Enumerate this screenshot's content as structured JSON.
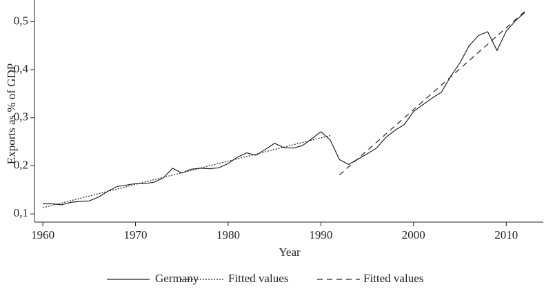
{
  "chart_data": {
    "type": "line",
    "x_label": "Year",
    "y_label": "Exports as % of GDP",
    "xlim": [
      1959.1,
      2014
    ],
    "ylim": [
      0.083,
      0.545
    ],
    "xticks": [
      1960,
      1970,
      1980,
      1990,
      2000,
      2010
    ],
    "yticks": [
      {
        "value": 0.1,
        "label": "0,1"
      },
      {
        "value": 0.2,
        "label": "0,2"
      },
      {
        "value": 0.3,
        "label": "0,3"
      },
      {
        "value": 0.4,
        "label": "0,4"
      },
      {
        "value": 0.5,
        "label": "0,5"
      }
    ],
    "legend": "bottom",
    "series": [
      {
        "name": "Germany",
        "color": "#222222",
        "dash": "solid",
        "x": [
          1960,
          1961,
          1962,
          1963,
          1964,
          1965,
          1966,
          1967,
          1968,
          1969,
          1970,
          1971,
          1972,
          1973,
          1974,
          1975,
          1976,
          1977,
          1978,
          1979,
          1980,
          1981,
          1982,
          1983,
          1984,
          1985,
          1986,
          1987,
          1988,
          1989,
          1990,
          1991,
          1992,
          1993,
          1994,
          1995,
          1996,
          1997,
          1998,
          1999,
          2000,
          2001,
          2002,
          2003,
          2004,
          2005,
          2006,
          2007,
          2008,
          2009,
          2010,
          2011,
          2012
        ],
        "values": [
          0.121,
          0.121,
          0.119,
          0.124,
          0.126,
          0.127,
          0.135,
          0.147,
          0.157,
          0.16,
          0.163,
          0.163,
          0.166,
          0.175,
          0.195,
          0.185,
          0.193,
          0.195,
          0.194,
          0.196,
          0.205,
          0.218,
          0.227,
          0.222,
          0.234,
          0.247,
          0.238,
          0.237,
          0.242,
          0.256,
          0.271,
          0.254,
          0.213,
          0.203,
          0.214,
          0.225,
          0.237,
          0.259,
          0.274,
          0.286,
          0.313,
          0.327,
          0.341,
          0.353,
          0.386,
          0.414,
          0.45,
          0.471,
          0.479,
          0.44,
          0.48,
          0.502,
          0.519
        ]
      },
      {
        "name": "Fitted values",
        "color": "#222222",
        "dash": "dotted",
        "x": [
          1960,
          1991
        ],
        "values": [
          0.113,
          0.263
        ]
      },
      {
        "name": "Fitted values",
        "color": "#222222",
        "dash": "dashed",
        "x": [
          1992,
          2012
        ],
        "values": [
          0.181,
          0.521
        ]
      }
    ]
  }
}
